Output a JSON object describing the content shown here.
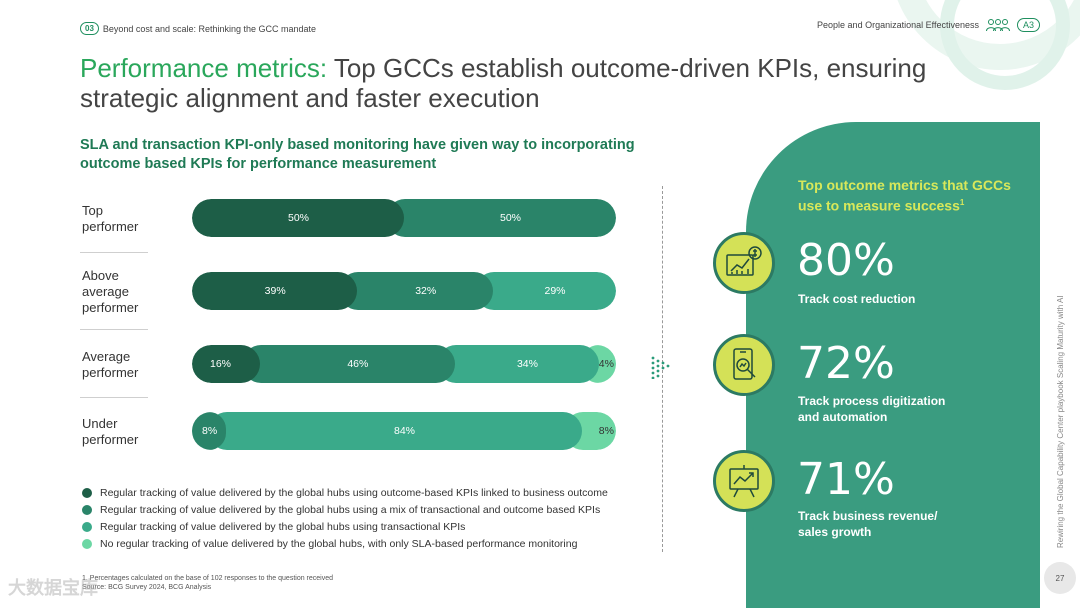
{
  "header": {
    "chapter_number": "03",
    "chapter_title": "Beyond cost and scale: Rethinking the GCC mandate",
    "section_label": "People and Organizational Effectiveness",
    "section_code": "A3"
  },
  "title": {
    "accent": "Performance metrics:",
    "rest": " Top GCCs establish outcome-driven KPIs, ensuring strategic alignment and faster execution"
  },
  "subtitle": "SLA and transaction KPI-only based monitoring have given way to incorporating outcome based KPIs for performance measurement",
  "colors": {
    "outcome": "#1d5e47",
    "mix": "#2a8469",
    "transactional": "#3aaa8a",
    "sla_only": "#6cd7a4",
    "panel": "#3a9c80",
    "lime": "#d4e157"
  },
  "chart_data": {
    "type": "bar",
    "orientation": "horizontal",
    "stacked": true,
    "unit": "%",
    "categories": [
      "Top performer",
      "Above average performer",
      "Average performer",
      "Under performer"
    ],
    "series": [
      {
        "name": "Regular tracking of value delivered by the global hubs using outcome-based KPIs linked to business outcome",
        "values": [
          50,
          39,
          16,
          0
        ],
        "labels": [
          "50%",
          "39%",
          "16%",
          ""
        ]
      },
      {
        "name": "Regular tracking of value delivered by the global hubs using a mix of transactional and outcome based KPIs",
        "values": [
          50,
          32,
          46,
          8
        ],
        "labels": [
          "50%",
          "32%",
          "46%",
          "8%"
        ]
      },
      {
        "name": "Regular tracking of value delivered by the global hubs using transactional KPIs",
        "values": [
          0,
          29,
          34,
          84
        ],
        "labels": [
          "",
          "29%",
          "34%",
          "84%"
        ]
      },
      {
        "name": "No regular tracking of value delivered by the global hubs, with only SLA-based performance monitoring",
        "values": [
          0,
          0,
          4,
          8
        ],
        "labels": [
          "",
          "",
          "4%",
          "8%"
        ]
      }
    ],
    "xlim": [
      0,
      100
    ],
    "legend": "bottom"
  },
  "rows": [
    {
      "label": "Top\nperformer"
    },
    {
      "label": "Above\naverage\nperformer"
    },
    {
      "label": "Average\nperformer"
    },
    {
      "label": "Under\nperformer"
    }
  ],
  "legend": [
    "Regular tracking of value delivered by the global hubs using outcome-based KPIs linked to business outcome",
    "Regular tracking of value delivered by the global hubs using a mix of transactional and outcome based KPIs",
    "Regular tracking of value delivered by the global hubs using transactional KPIs",
    "No regular tracking of value delivered by the global hubs, with only SLA-based performance monitoring"
  ],
  "footnote": {
    "line1": "1. Percentages calculated on the base of 102 responses to the question received",
    "line2": "Source: BCG Survey 2024, BCG Analysis"
  },
  "panel": {
    "title": "Top outcome metrics that GCCs use to measure success",
    "title_superscript": "1",
    "metrics": [
      {
        "value": "80%",
        "label": "Track cost reduction",
        "icon": "cost-chart-icon"
      },
      {
        "value": "72%",
        "label": "Track process digitization\nand automation",
        "icon": "mobile-search-icon"
      },
      {
        "value": "71%",
        "label": "Track business revenue/\nsales growth",
        "icon": "growth-board-icon"
      }
    ]
  },
  "side_text": "Rewiring the Global Capability Center playbook Scaling Maturity with AI",
  "page_number": "27",
  "watermark": "大数据宝库"
}
